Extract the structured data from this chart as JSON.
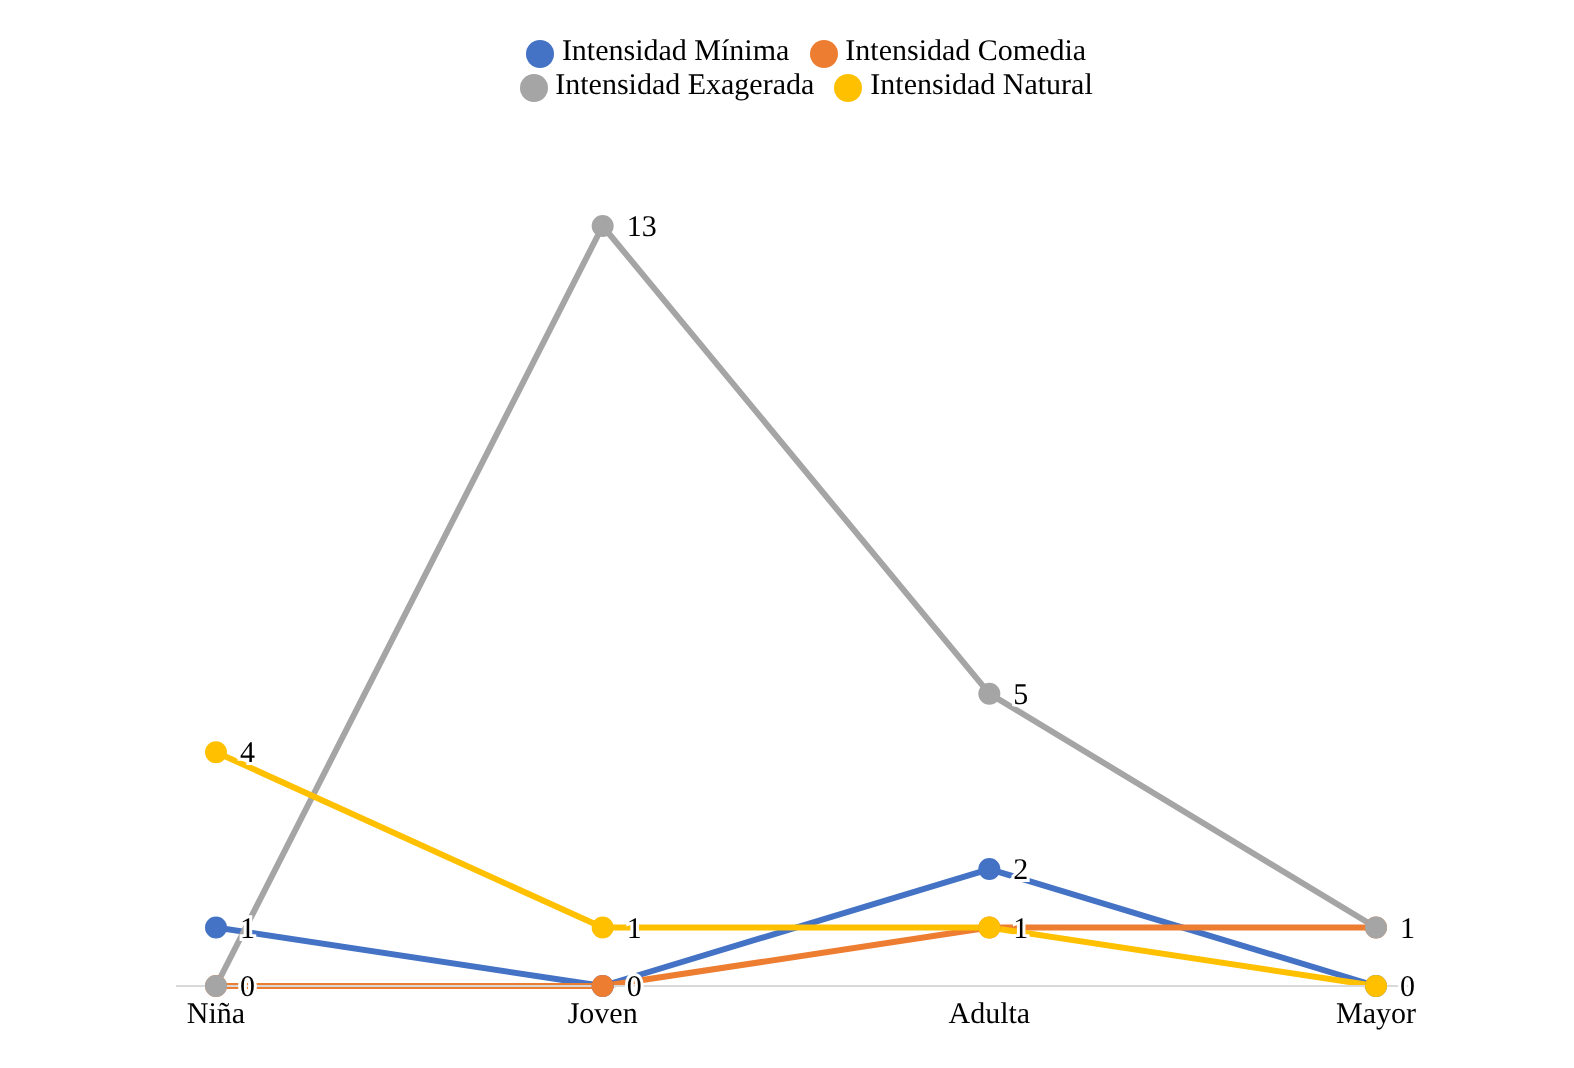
{
  "chart_data": {
    "type": "line",
    "categories": [
      "Niña",
      "Joven",
      "Adulta",
      "Mayor"
    ],
    "series": [
      {
        "name": "Intensidad Mínima",
        "color": "#4472c4",
        "values": [
          1,
          0,
          2,
          0
        ],
        "value_labels": [
          "1",
          null,
          "2",
          null
        ]
      },
      {
        "name": "Intensidad Comedia",
        "color": "#ed7d31",
        "values": [
          0,
          0,
          1,
          1
        ],
        "value_labels": [
          "0",
          "0",
          null,
          "1"
        ]
      },
      {
        "name": "Intensidad Exagerada",
        "color": "#a5a5a5",
        "values": [
          0,
          13,
          5,
          1
        ],
        "value_labels": [
          null,
          "13",
          "5",
          null
        ]
      },
      {
        "name": "Intensidad Natural",
        "color": "#ffc000",
        "values": [
          4,
          1,
          1,
          0
        ],
        "value_labels": [
          "4",
          "1",
          "1",
          "0"
        ]
      }
    ],
    "legend": "top",
    "marker": "circle",
    "line_style": "solid"
  }
}
